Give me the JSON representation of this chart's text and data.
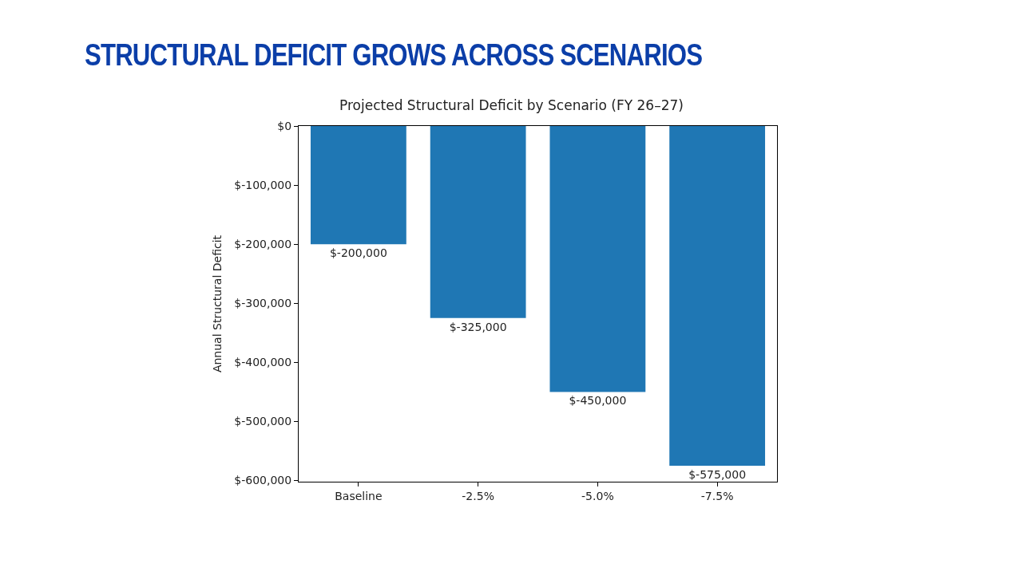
{
  "chart_data": {
    "type": "bar",
    "title": "STRUCTURAL DEFICIT GROWS ACROSS SCENARIOS",
    "subtitle": "Projected Structural Deficit by Scenario (FY 26–27)",
    "ylabel": "Annual Structural Deficit",
    "categories": [
      "Baseline",
      "-2.5%",
      "-5.0%",
      "-7.5%"
    ],
    "values": [
      -200000,
      -325000,
      -450000,
      -575000
    ],
    "value_labels": [
      "$-200,000",
      "$-325,000",
      "$-450,000",
      "$-575,000"
    ],
    "color": "#1f77b4",
    "ylim": [
      -602000,
      0
    ],
    "yticks": [
      {
        "value": -600000,
        "label": "$-600,000"
      },
      {
        "value": -500000,
        "label": "$-500,000"
      },
      {
        "value": -400000,
        "label": "$-400,000"
      },
      {
        "value": -300000,
        "label": "$-300,000"
      },
      {
        "value": -200000,
        "label": "$-200,000"
      },
      {
        "value": -100000,
        "label": "$-100,000"
      },
      {
        "value": 0,
        "label": "$0"
      }
    ],
    "grid": false
  }
}
